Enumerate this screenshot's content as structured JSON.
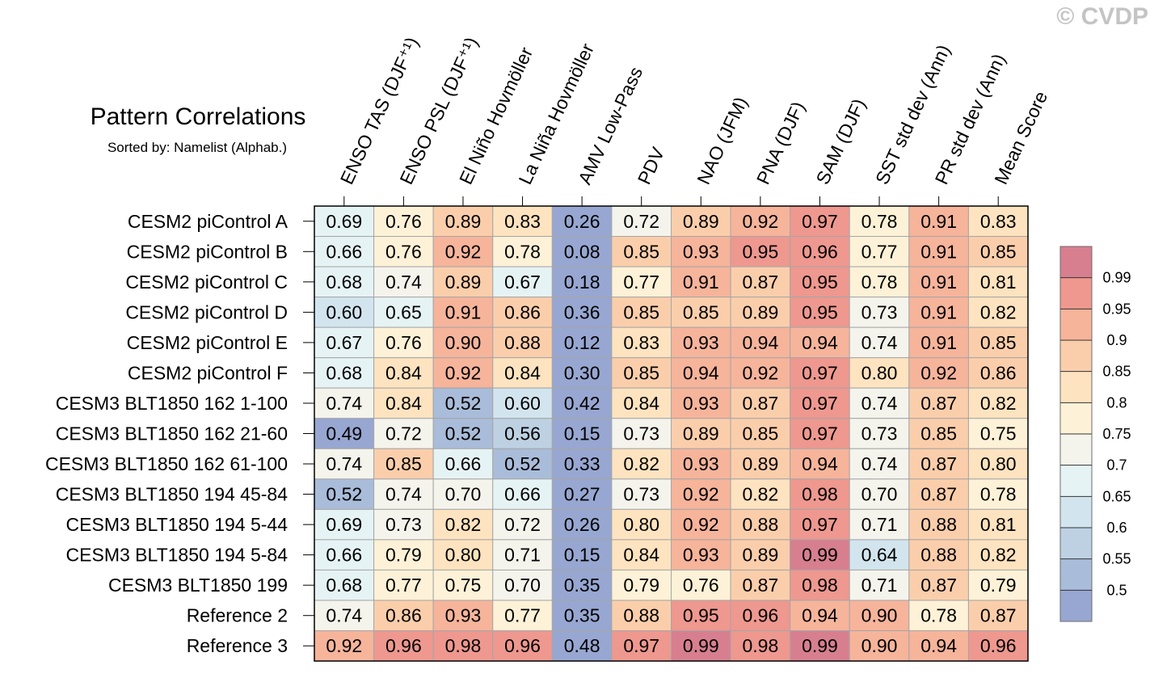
{
  "watermark": "© CVDP",
  "chart_data": {
    "type": "heatmap",
    "title": "Pattern Correlations",
    "subtitle": "Sorted by: Namelist (Alphab.)",
    "columns": [
      "ENSO TAS (DJF⁺¹)",
      "ENSO PSL (DJF⁺¹)",
      "El Niño Hovmöller",
      "La Niña Hovmöller",
      "AMV Low-Pass",
      "PDV",
      "NAO (JFM)",
      "PNA (DJF)",
      "SAM (DJF)",
      "SST std dev (Ann)",
      "PR std dev (Ann)",
      "Mean Score"
    ],
    "rows": [
      "CESM2 piControl A",
      "CESM2 piControl B",
      "CESM2 piControl C",
      "CESM2 piControl D",
      "CESM2 piControl E",
      "CESM2 piControl F",
      "CESM3 BLT1850 162 1-100",
      "CESM3 BLT1850 162 21-60",
      "CESM3 BLT1850 162 61-100",
      "CESM3 BLT1850 194 45-84",
      "CESM3 BLT1850 194 5-44",
      "CESM3 BLT1850 194 5-84",
      "CESM3 BLT1850 199",
      "Reference 2",
      "Reference 3"
    ],
    "values": [
      [
        "0.69",
        "0.76",
        "0.89",
        "0.83",
        "0.26",
        "0.72",
        "0.89",
        "0.92",
        "0.97",
        "0.78",
        "0.91",
        "0.83"
      ],
      [
        "0.66",
        "0.76",
        "0.92",
        "0.78",
        "0.08",
        "0.85",
        "0.93",
        "0.95",
        "0.96",
        "0.77",
        "0.91",
        "0.85"
      ],
      [
        "0.68",
        "0.74",
        "0.89",
        "0.67",
        "0.18",
        "0.77",
        "0.91",
        "0.87",
        "0.95",
        "0.78",
        "0.91",
        "0.81"
      ],
      [
        "0.60",
        "0.65",
        "0.91",
        "0.86",
        "0.36",
        "0.85",
        "0.85",
        "0.89",
        "0.95",
        "0.73",
        "0.91",
        "0.82"
      ],
      [
        "0.67",
        "0.76",
        "0.90",
        "0.88",
        "0.12",
        "0.83",
        "0.93",
        "0.94",
        "0.94",
        "0.74",
        "0.91",
        "0.85"
      ],
      [
        "0.68",
        "0.84",
        "0.92",
        "0.84",
        "0.30",
        "0.85",
        "0.94",
        "0.92",
        "0.97",
        "0.80",
        "0.92",
        "0.86"
      ],
      [
        "0.74",
        "0.84",
        "0.52",
        "0.60",
        "0.42",
        "0.84",
        "0.93",
        "0.87",
        "0.97",
        "0.74",
        "0.87",
        "0.82"
      ],
      [
        "0.49",
        "0.72",
        "0.52",
        "0.56",
        "0.15",
        "0.73",
        "0.89",
        "0.85",
        "0.97",
        "0.73",
        "0.85",
        "0.75"
      ],
      [
        "0.74",
        "0.85",
        "0.66",
        "0.52",
        "0.33",
        "0.82",
        "0.93",
        "0.89",
        "0.94",
        "0.74",
        "0.87",
        "0.80"
      ],
      [
        "0.52",
        "0.74",
        "0.70",
        "0.66",
        "0.27",
        "0.73",
        "0.92",
        "0.82",
        "0.98",
        "0.70",
        "0.87",
        "0.78"
      ],
      [
        "0.69",
        "0.73",
        "0.82",
        "0.72",
        "0.26",
        "0.80",
        "0.92",
        "0.88",
        "0.97",
        "0.71",
        "0.88",
        "0.81"
      ],
      [
        "0.66",
        "0.79",
        "0.80",
        "0.71",
        "0.15",
        "0.84",
        "0.93",
        "0.89",
        "0.99",
        "0.64",
        "0.88",
        "0.82"
      ],
      [
        "0.68",
        "0.77",
        "0.75",
        "0.70",
        "0.35",
        "0.79",
        "0.76",
        "0.87",
        "0.98",
        "0.71",
        "0.87",
        "0.79"
      ],
      [
        "0.74",
        "0.86",
        "0.93",
        "0.77",
        "0.35",
        "0.88",
        "0.95",
        "0.96",
        "0.94",
        "0.90",
        "0.78",
        "0.87"
      ],
      [
        "0.92",
        "0.96",
        "0.98",
        "0.96",
        "0.48",
        "0.97",
        "0.99",
        "0.98",
        "0.99",
        "0.90",
        "0.94",
        "0.96"
      ]
    ],
    "colorbar": {
      "thresholds": [
        0.5,
        0.55,
        0.6,
        0.65,
        0.7,
        0.75,
        0.8,
        0.85,
        0.9,
        0.95,
        0.99
      ],
      "labels": [
        "0.5",
        "0.55",
        "0.6",
        "0.65",
        "0.7",
        "0.75",
        "0.8",
        "0.85",
        "0.9",
        "0.95",
        "0.99"
      ],
      "colors": [
        "#97a7d1",
        "#a9bcd9",
        "#bdd1e3",
        "#d2e5ee",
        "#e6f3f5",
        "#f4f4ec",
        "#fdf2d7",
        "#fde3bf",
        "#fbceab",
        "#f6b49b",
        "#ee988f",
        "#d77f8f"
      ]
    }
  }
}
